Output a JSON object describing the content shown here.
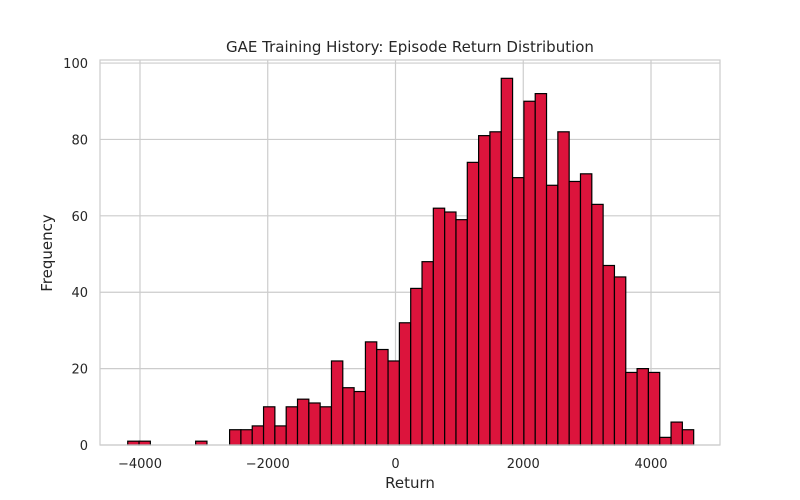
{
  "chart_data": {
    "type": "bar",
    "subtype": "histogram",
    "title": "GAE Training History: Episode Return Distribution",
    "xlabel": "Return",
    "ylabel": "Frequency",
    "xlim": [
      -4626,
      5080
    ],
    "ylim": [
      0,
      100.8
    ],
    "xticks": [
      -4000,
      -2000,
      0,
      2000,
      4000
    ],
    "xtick_labels": [
      "−4000",
      "−2000",
      "0",
      "2000",
      "4000"
    ],
    "yticks": [
      0,
      20,
      40,
      60,
      80,
      100
    ],
    "ytick_labels": [
      "0",
      "20",
      "40",
      "60",
      "80",
      "100"
    ],
    "grid": true,
    "bar_color": "#DC143C",
    "edge_color": "#000000",
    "bin_start": -4192,
    "bin_width": 177.2,
    "values": [
      1,
      1,
      0,
      0,
      0,
      0,
      1,
      0,
      0,
      4,
      4,
      5,
      10,
      5,
      10,
      12,
      11,
      10,
      22,
      15,
      14,
      27,
      25,
      22,
      32,
      41,
      48,
      62,
      61,
      59,
      74,
      81,
      82,
      96,
      70,
      90,
      92,
      68,
      82,
      69,
      71,
      63,
      47,
      44,
      19,
      20,
      19,
      2,
      6,
      4
    ]
  }
}
